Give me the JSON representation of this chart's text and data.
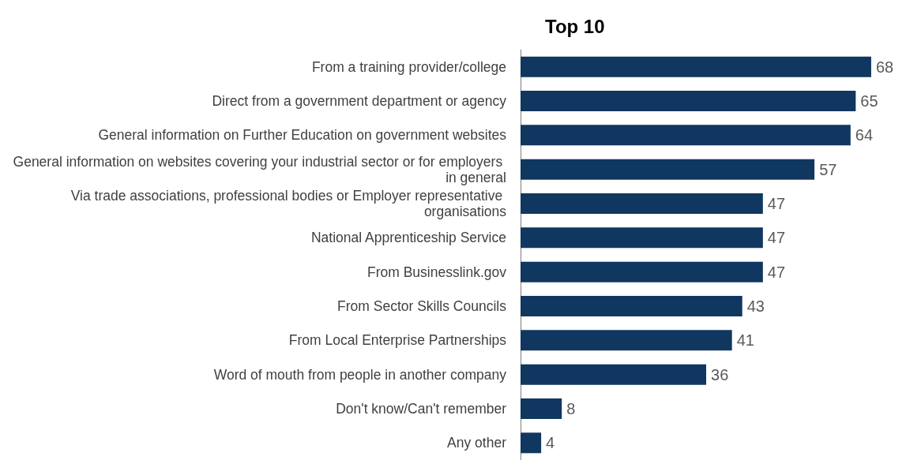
{
  "chart_data": {
    "type": "bar",
    "orientation": "horizontal",
    "title": "Top 10",
    "categories": [
      "From a training provider/college",
      "Direct from a government department or agency",
      "General information on Further Education on government websites",
      "General information on websites covering your industrial sector or for employers in general",
      "Via trade associations, professional bodies or Employer representative organisations",
      "National Apprenticeship Service",
      "From Businesslink.gov",
      "From Sector Skills Councils",
      "From Local Enterprise Partnerships",
      "Word of mouth from people in another company",
      "Don't know/Can't remember",
      "Any other"
    ],
    "values": [
      68,
      65,
      64,
      57,
      47,
      47,
      47,
      43,
      41,
      36,
      8,
      4
    ],
    "color": "#10375f",
    "data_labels": true
  }
}
